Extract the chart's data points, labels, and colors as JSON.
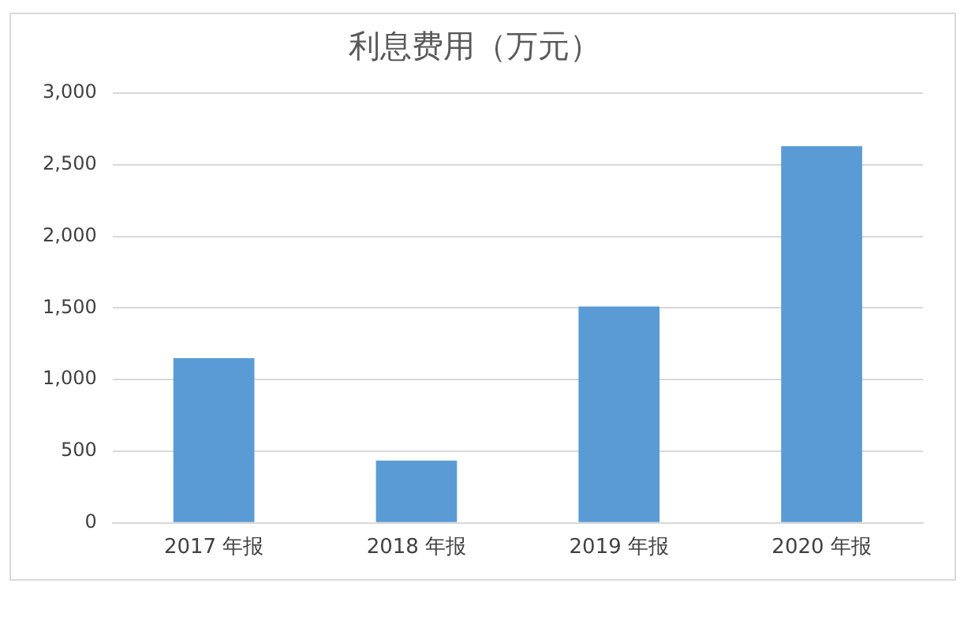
{
  "chart_data": {
    "type": "bar",
    "title": "利息费用（万元）",
    "categories": [
      "2017 年报",
      "2018 年报",
      "2019 年报",
      "2020 年报"
    ],
    "values": [
      1150,
      435,
      1510,
      2630
    ],
    "color": "#5b9bd5",
    "ylim": [
      0,
      3000
    ],
    "yticks": [
      {
        "value": 0,
        "label": "0"
      },
      {
        "value": 500,
        "label": "500"
      },
      {
        "value": 1000,
        "label": "1,000"
      },
      {
        "value": 1500,
        "label": "1,500"
      },
      {
        "value": 2000,
        "label": "2,000"
      },
      {
        "value": 2500,
        "label": "2,500"
      },
      {
        "value": 3000,
        "label": "3,000"
      }
    ],
    "grid": "y",
    "legend": false
  }
}
